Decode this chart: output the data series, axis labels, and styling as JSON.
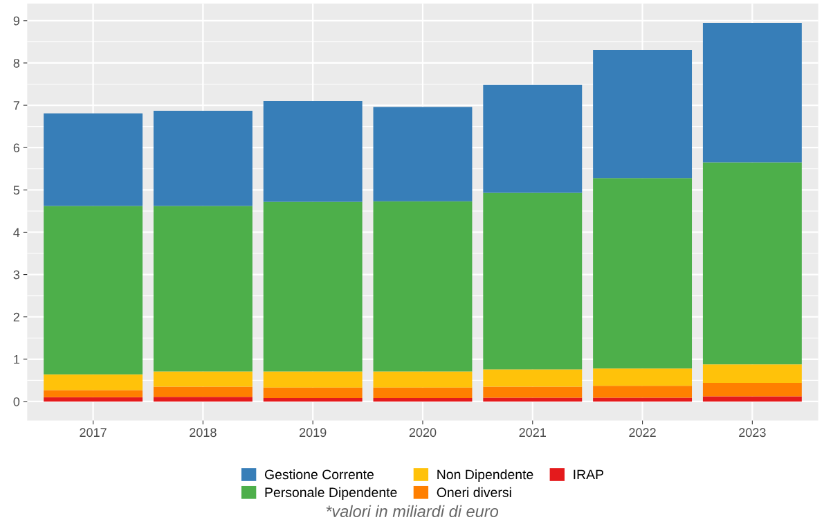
{
  "chart_data": {
    "type": "bar",
    "stacked": true,
    "categories": [
      "2017",
      "2018",
      "2019",
      "2020",
      "2021",
      "2022",
      "2023"
    ],
    "series": [
      {
        "name": "IRAP",
        "color": "#e41a1c",
        "values": [
          0.1,
          0.11,
          0.08,
          0.08,
          0.09,
          0.09,
          0.12
        ]
      },
      {
        "name": "Oneri diversi",
        "color": "#ff7f00",
        "values": [
          0.17,
          0.24,
          0.25,
          0.25,
          0.26,
          0.28,
          0.32
        ]
      },
      {
        "name": "Non Dipendente",
        "color": "#ffc20a",
        "values": [
          0.37,
          0.36,
          0.38,
          0.38,
          0.41,
          0.41,
          0.44
        ]
      },
      {
        "name": "Personale Dipendente",
        "color": "#4daf4a",
        "values": [
          3.98,
          3.91,
          4.01,
          4.02,
          4.17,
          4.5,
          4.77
        ]
      },
      {
        "name": "Gestione Corrente",
        "color": "#377eb8",
        "values": [
          2.19,
          2.25,
          2.38,
          2.23,
          2.55,
          3.03,
          3.3
        ]
      }
    ],
    "ylim": [
      -0.45,
      9.4
    ],
    "yticks": [
      0,
      1,
      2,
      3,
      4,
      5,
      6,
      7,
      8,
      9
    ],
    "grid": true,
    "legend": "bottom",
    "annotations": [
      "*valori in miliardi di euro"
    ]
  }
}
